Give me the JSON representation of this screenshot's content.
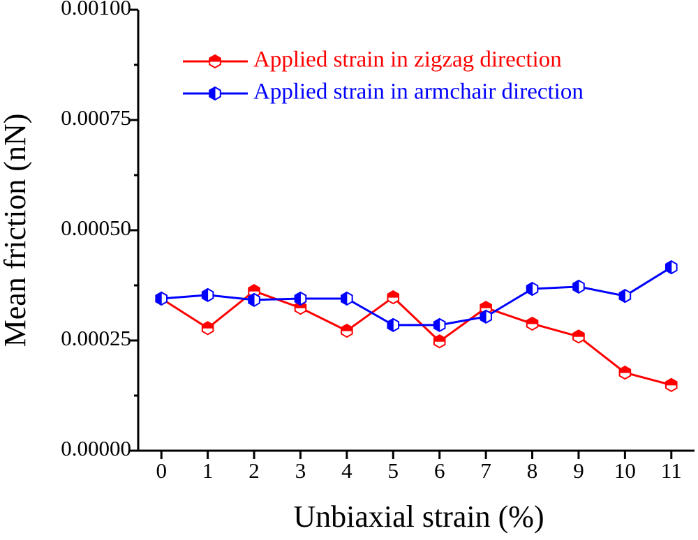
{
  "chart_data": {
    "type": "line",
    "x_label": "Unbiaxial strain (%)",
    "y_label": "Mean friction (nN)",
    "x": [
      0,
      1,
      2,
      3,
      4,
      5,
      6,
      7,
      8,
      9,
      10,
      11
    ],
    "xlim": [
      -0.5,
      11.5
    ],
    "xticks": [
      0,
      1,
      2,
      3,
      4,
      5,
      6,
      7,
      8,
      9,
      10,
      11
    ],
    "ylim": [
      0,
      0.001
    ],
    "yticks": [
      {
        "value": 0,
        "label": "0.00000"
      },
      {
        "value": 0.00025,
        "label": "0.00025"
      },
      {
        "value": 0.0005,
        "label": "0.00050"
      },
      {
        "value": 0.00075,
        "label": "0.00075"
      },
      {
        "value": 0.001,
        "label": "0.00100"
      }
    ],
    "yminorticks": [
      0.000125,
      0.000375,
      0.000625,
      0.000875
    ],
    "legend": "upper left",
    "series": [
      {
        "name": "Applied strain in zigzag direction",
        "color": "#ff0000",
        "marker_fill": "top",
        "values": [
          0.000345,
          0.000278,
          0.000362,
          0.000324,
          0.000272,
          0.000348,
          0.000248,
          0.000324,
          0.000288,
          0.000259,
          0.000177,
          0.000149
        ]
      },
      {
        "name": "Applied strain in armchair direction",
        "color": "#0000ff",
        "marker_fill": "left",
        "values": [
          0.000345,
          0.000353,
          0.000342,
          0.000345,
          0.000345,
          0.000285,
          0.000285,
          0.000304,
          0.000367,
          0.000372,
          0.000351,
          0.000416
        ]
      }
    ]
  }
}
